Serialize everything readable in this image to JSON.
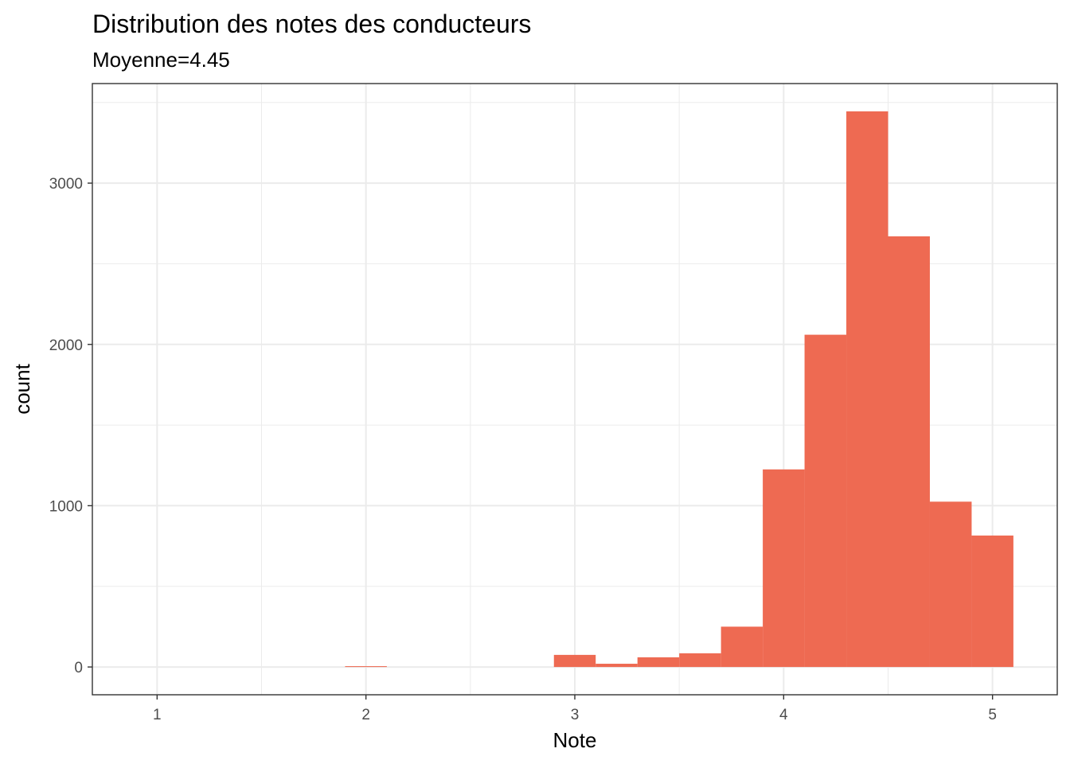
{
  "chart_data": {
    "type": "bar",
    "title": "Distribution des notes des conducteurs",
    "subtitle": "Moyenne=4.45",
    "xlabel": "Note",
    "ylabel": "count",
    "bin_width": 0.2,
    "bins": [
      {
        "x0": 1.9,
        "x1": 2.1,
        "count": 5
      },
      {
        "x0": 2.9,
        "x1": 3.1,
        "count": 75
      },
      {
        "x0": 3.1,
        "x1": 3.3,
        "count": 20
      },
      {
        "x0": 3.3,
        "x1": 3.5,
        "count": 60
      },
      {
        "x0": 3.5,
        "x1": 3.7,
        "count": 85
      },
      {
        "x0": 3.7,
        "x1": 3.9,
        "count": 250
      },
      {
        "x0": 3.9,
        "x1": 4.1,
        "count": 1225
      },
      {
        "x0": 4.1,
        "x1": 4.3,
        "count": 2060
      },
      {
        "x0": 4.3,
        "x1": 4.5,
        "count": 3445
      },
      {
        "x0": 4.5,
        "x1": 4.7,
        "count": 2670
      },
      {
        "x0": 4.7,
        "x1": 4.9,
        "count": 1025
      },
      {
        "x0": 4.9,
        "x1": 5.1,
        "count": 815
      }
    ],
    "xlim": [
      0.69,
      5.31
    ],
    "ylim": [
      -172.25,
      3617.25
    ],
    "x_ticks": [
      1,
      2,
      3,
      4,
      5
    ],
    "x_tick_labels": [
      "1",
      "2",
      "3",
      "4",
      "5"
    ],
    "y_ticks": [
      0,
      1000,
      2000,
      3000
    ],
    "y_tick_labels": [
      "0",
      "1000",
      "2000",
      "3000"
    ],
    "bar_color": "#ee6a52",
    "grid": true,
    "legend": "none"
  }
}
